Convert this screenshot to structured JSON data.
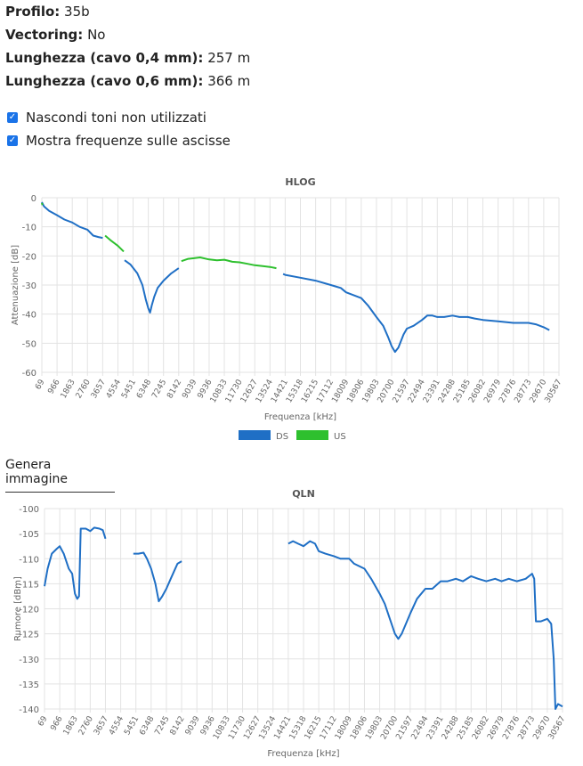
{
  "info": {
    "profilo_label": "Profilo",
    "profilo_value": "35b",
    "vectoring_label": "Vectoring",
    "vectoring_value": "No",
    "lung04_label": "Lunghezza (cavo 0,4 mm)",
    "lung04_value": "257 m",
    "lung06_label": "Lunghezza (cavo 0,6 mm)",
    "lung06_value": "366 m"
  },
  "options": {
    "hide_unused": {
      "label": "Nascondi toni non utilizzati",
      "checked": true
    },
    "show_freq": {
      "label": "Mostra frequenze sulle ascisse",
      "checked": true
    }
  },
  "generate_image_label": "Genera immagine",
  "colors": {
    "ds": "#1f6fc5",
    "us": "#2ec02e",
    "grid": "#e3e3e3"
  },
  "chart_data": [
    {
      "type": "line",
      "title": "HLOG",
      "xlabel": "Frequenza [kHz]",
      "ylabel": "Attenuazione [dB]",
      "ylim": [
        -60,
        0
      ],
      "yticks": [
        0,
        -10,
        -20,
        -30,
        -40,
        -50,
        -60
      ],
      "xlim": [
        69,
        30567
      ],
      "xticks": [
        "69",
        "966",
        "1863",
        "2760",
        "3657",
        "4554",
        "5451",
        "6348",
        "7245",
        "8142",
        "9039",
        "9936",
        "10833",
        "11730",
        "12627",
        "13524",
        "14421",
        "15318",
        "16215",
        "17112",
        "18009",
        "18906",
        "19803",
        "20700",
        "21597",
        "22494",
        "23391",
        "24288",
        "25185",
        "26082",
        "26979",
        "27876",
        "28773",
        "29670",
        "30567"
      ],
      "grid": true,
      "legend": "bottom",
      "series": [
        {
          "name": "DS",
          "segments": [
            [
              [
                69,
                -1.5
              ],
              [
                200,
                -3
              ],
              [
                500,
                -4.5
              ],
              [
                966,
                -6
              ],
              [
                1400,
                -7.5
              ],
              [
                1863,
                -8.5
              ],
              [
                2300,
                -10
              ],
              [
                2760,
                -11
              ],
              [
                3100,
                -13
              ],
              [
                3400,
                -13.5
              ],
              [
                3657,
                -13.8
              ]
            ],
            [
              [
                4950,
                -21.5
              ],
              [
                5300,
                -23
              ],
              [
                5700,
                -26
              ],
              [
                6000,
                -30
              ],
              [
                6200,
                -35
              ],
              [
                6348,
                -38
              ],
              [
                6450,
                -39.5
              ],
              [
                6550,
                -37
              ],
              [
                6700,
                -34
              ],
              [
                6900,
                -31
              ],
              [
                7245,
                -28.5
              ],
              [
                7700,
                -26
              ],
              [
                8142,
                -24.2
              ]
            ],
            [
              [
                14300,
                -26.2
              ],
              [
                14421,
                -26.5
              ],
              [
                15318,
                -27.5
              ],
              [
                16215,
                -28.5
              ],
              [
                17112,
                -30
              ],
              [
                17700,
                -31
              ],
              [
                18009,
                -32.5
              ],
              [
                18906,
                -34.5
              ],
              [
                19300,
                -37
              ],
              [
                19803,
                -41
              ],
              [
                20200,
                -44
              ],
              [
                20500,
                -48
              ],
              [
                20700,
                -51
              ],
              [
                20900,
                -53
              ],
              [
                21100,
                -51.5
              ],
              [
                21400,
                -47
              ],
              [
                21597,
                -45
              ],
              [
                22000,
                -44
              ],
              [
                22494,
                -42
              ],
              [
                22800,
                -40.5
              ],
              [
                23100,
                -40.5
              ],
              [
                23391,
                -41
              ],
              [
                23800,
                -41
              ],
              [
                24288,
                -40.5
              ],
              [
                24700,
                -41
              ],
              [
                25185,
                -41
              ],
              [
                25600,
                -41.5
              ],
              [
                26082,
                -42
              ],
              [
                26979,
                -42.5
              ],
              [
                27876,
                -43
              ],
              [
                28773,
                -43
              ],
              [
                29200,
                -43.5
              ],
              [
                29670,
                -44.5
              ],
              [
                30000,
                -45.5
              ]
            ]
          ]
        },
        {
          "name": "US",
          "segments": [
            [
              [
                69,
                -1.8
              ],
              [
                100,
                -2.5
              ]
            ],
            [
              [
                3800,
                -13
              ],
              [
                4100,
                -14.5
              ],
              [
                4554,
                -16.5
              ],
              [
                4900,
                -18.5
              ]
            ],
            [
              [
                8300,
                -21.8
              ],
              [
                8700,
                -21
              ],
              [
                9039,
                -20.8
              ],
              [
                9400,
                -20.5
              ],
              [
                9936,
                -21.2
              ],
              [
                10400,
                -21.5
              ],
              [
                10833,
                -21.3
              ],
              [
                11300,
                -22
              ],
              [
                11730,
                -22.2
              ],
              [
                12200,
                -22.7
              ],
              [
                12627,
                -23.2
              ],
              [
                13100,
                -23.5
              ],
              [
                13524,
                -23.8
              ],
              [
                13900,
                -24.2
              ]
            ]
          ]
        }
      ]
    },
    {
      "type": "line",
      "title": "QLN",
      "xlabel": "Frequenza [kHz]",
      "ylabel": "Rumore [dBm]",
      "ylim": [
        -140,
        -100
      ],
      "yticks": [
        -100,
        -105,
        -110,
        -115,
        -120,
        -125,
        -130,
        -135,
        -140
      ],
      "xlim": [
        69,
        30567
      ],
      "xticks": [
        "69",
        "966",
        "1863",
        "2760",
        "3657",
        "4554",
        "5451",
        "6348",
        "7245",
        "8142",
        "9039",
        "9936",
        "10833",
        "11730",
        "12627",
        "13524",
        "14421",
        "15318",
        "16215",
        "17112",
        "18009",
        "18906",
        "19803",
        "20700",
        "21597",
        "22494",
        "23391",
        "24288",
        "25185",
        "26082",
        "26979",
        "27876",
        "28773",
        "29670",
        "30567"
      ],
      "grid": true,
      "series": [
        {
          "name": "DS",
          "segments": [
            [
              [
                69,
                -115.5
              ],
              [
                250,
                -112
              ],
              [
                500,
                -109
              ],
              [
                800,
                -108
              ],
              [
                966,
                -107.5
              ],
              [
                1200,
                -109
              ],
              [
                1500,
                -112
              ],
              [
                1700,
                -113
              ],
              [
                1863,
                -117
              ],
              [
                2000,
                -118
              ],
              [
                2100,
                -117.5
              ],
              [
                2200,
                -104
              ],
              [
                2500,
                -104
              ],
              [
                2760,
                -104.5
              ],
              [
                3000,
                -103.8
              ],
              [
                3300,
                -104
              ],
              [
                3500,
                -104.3
              ],
              [
                3657,
                -106
              ]
            ],
            [
              [
                5300,
                -109
              ],
              [
                5600,
                -109
              ],
              [
                5900,
                -108.8
              ],
              [
                6100,
                -110
              ],
              [
                6348,
                -112
              ],
              [
                6600,
                -115
              ],
              [
                6800,
                -118.5
              ],
              [
                7000,
                -117.5
              ],
              [
                7245,
                -116
              ],
              [
                7500,
                -114
              ],
              [
                7700,
                -112.5
              ],
              [
                7900,
                -111
              ],
              [
                8142,
                -110.5
              ]
            ],
            [
              [
                14421,
                -107
              ],
              [
                14700,
                -106.5
              ],
              [
                15000,
                -107
              ],
              [
                15318,
                -107.5
              ],
              [
                15700,
                -106.5
              ],
              [
                16000,
                -107
              ],
              [
                16215,
                -108.5
              ],
              [
                16600,
                -109
              ],
              [
                17112,
                -109.5
              ],
              [
                17500,
                -110
              ],
              [
                18009,
                -110
              ],
              [
                18300,
                -111
              ],
              [
                18906,
                -112
              ],
              [
                19300,
                -114
              ],
              [
                19803,
                -117
              ],
              [
                20100,
                -119
              ],
              [
                20400,
                -122
              ],
              [
                20700,
                -125
              ],
              [
                20900,
                -126
              ],
              [
                21100,
                -125
              ],
              [
                21597,
                -121
              ],
              [
                22000,
                -118
              ],
              [
                22494,
                -116
              ],
              [
                22900,
                -116
              ],
              [
                23391,
                -114.5
              ],
              [
                23800,
                -114.5
              ],
              [
                24288,
                -114
              ],
              [
                24700,
                -114.5
              ],
              [
                25185,
                -113.5
              ],
              [
                25600,
                -114
              ],
              [
                26082,
                -114.5
              ],
              [
                26600,
                -114
              ],
              [
                26979,
                -114.5
              ],
              [
                27400,
                -114
              ],
              [
                27876,
                -114.5
              ],
              [
                28400,
                -114
              ],
              [
                28773,
                -113
              ],
              [
                28900,
                -114
              ],
              [
                29000,
                -122.5
              ],
              [
                29300,
                -122.5
              ],
              [
                29670,
                -122
              ],
              [
                29900,
                -123
              ],
              [
                30050,
                -130
              ],
              [
                30150,
                -140
              ],
              [
                30300,
                -139
              ],
              [
                30567,
                -139.5
              ]
            ]
          ]
        }
      ]
    }
  ]
}
